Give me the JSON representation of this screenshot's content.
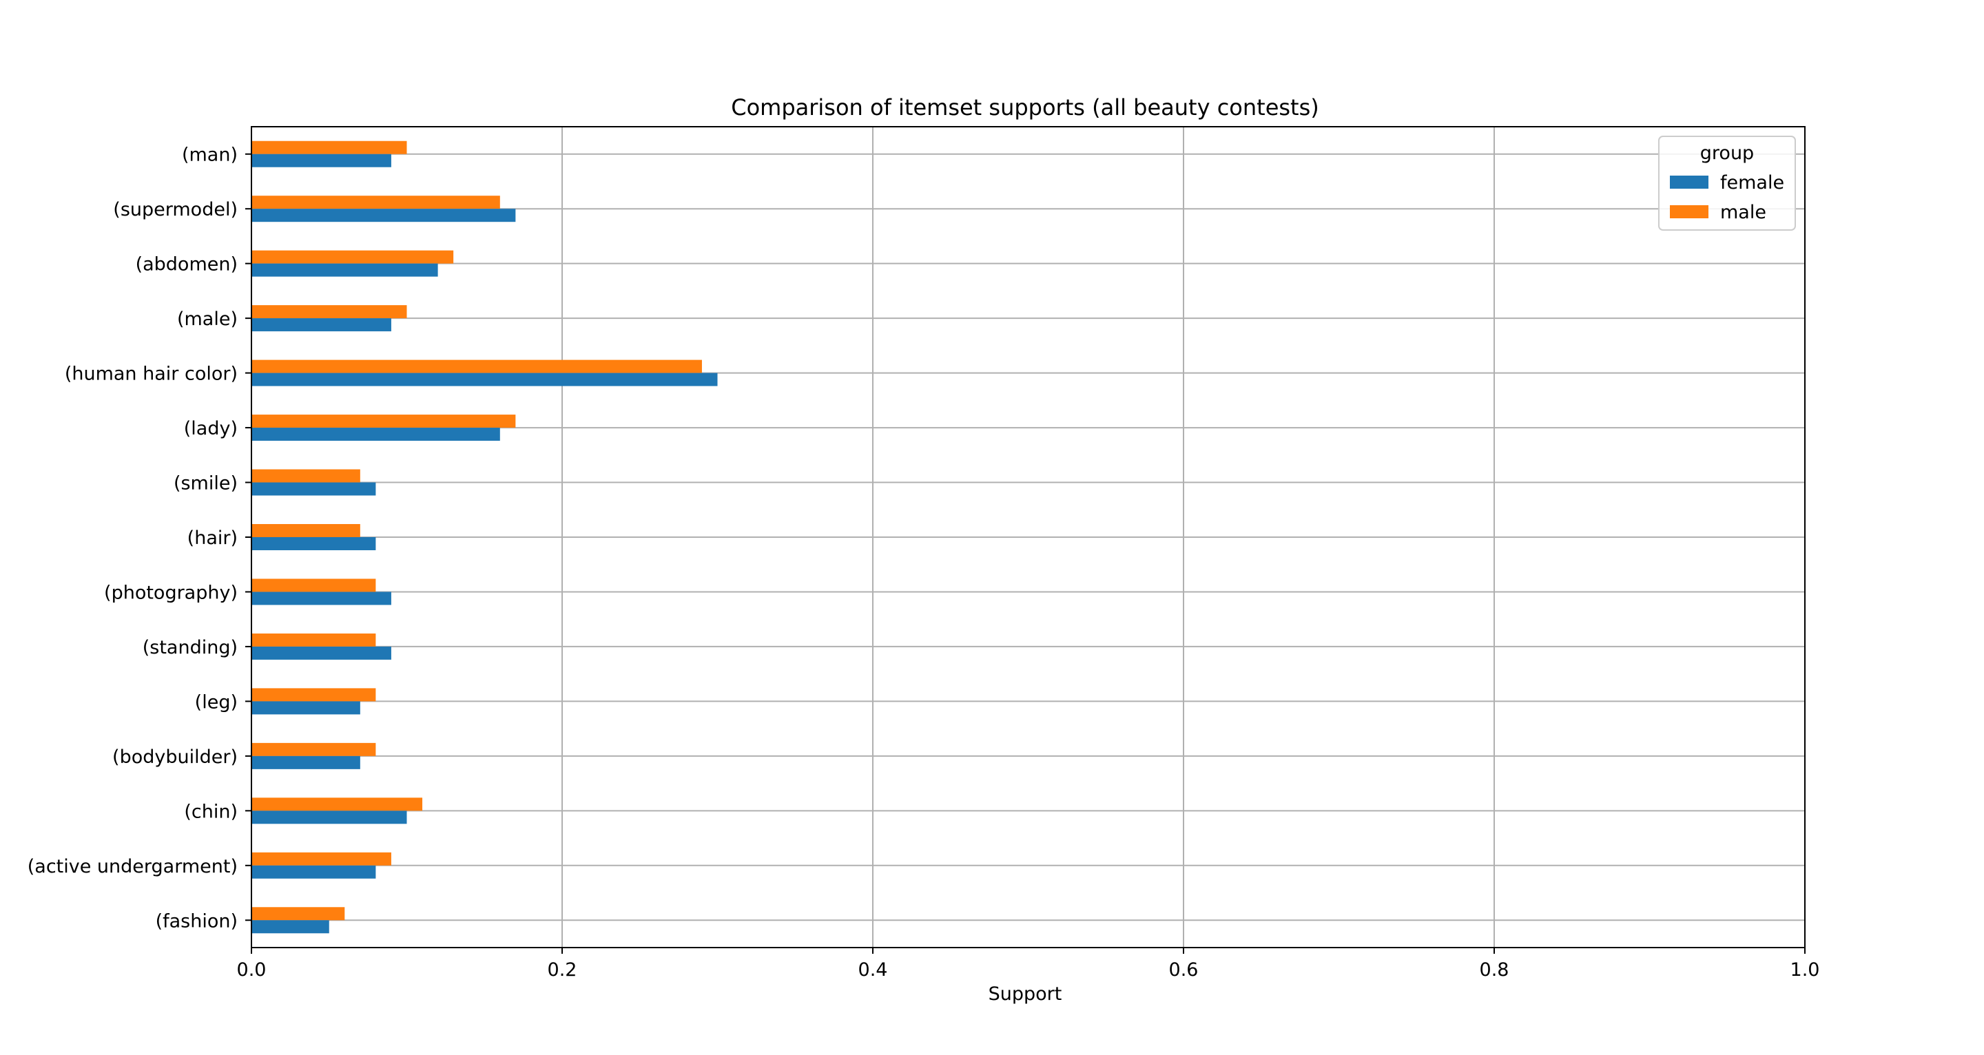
{
  "chart_data": {
    "type": "bar",
    "orientation": "horizontal",
    "title": "Comparison of itemset supports (all beauty contests)",
    "xlabel": "Support",
    "ylabel": "",
    "xlim": [
      0,
      1
    ],
    "xticks": [
      0.0,
      0.2,
      0.4,
      0.6,
      0.8,
      1.0
    ],
    "xtick_labels": [
      "0.0",
      "0.2",
      "0.4",
      "0.6",
      "0.8",
      "1.0"
    ],
    "grid": true,
    "legend": {
      "title": "group",
      "placement": "top-right"
    },
    "categories": [
      "(man)",
      "(supermodel)",
      "(abdomen)",
      "(male)",
      "(human hair color)",
      "(lady)",
      "(smile)",
      "(hair)",
      "(photography)",
      "(standing)",
      "(leg)",
      "(bodybuilder)",
      "(chin)",
      "(active undergarment)",
      "(fashion)"
    ],
    "series": [
      {
        "name": "female",
        "color": "#1f77b4",
        "values": [
          0.09,
          0.17,
          0.12,
          0.09,
          0.3,
          0.16,
          0.08,
          0.08,
          0.09,
          0.09,
          0.07,
          0.07,
          0.1,
          0.08,
          0.05
        ]
      },
      {
        "name": "male",
        "color": "#ff7f0e",
        "values": [
          0.1,
          0.16,
          0.13,
          0.1,
          0.29,
          0.17,
          0.07,
          0.07,
          0.08,
          0.08,
          0.08,
          0.08,
          0.11,
          0.09,
          0.06
        ]
      }
    ]
  }
}
